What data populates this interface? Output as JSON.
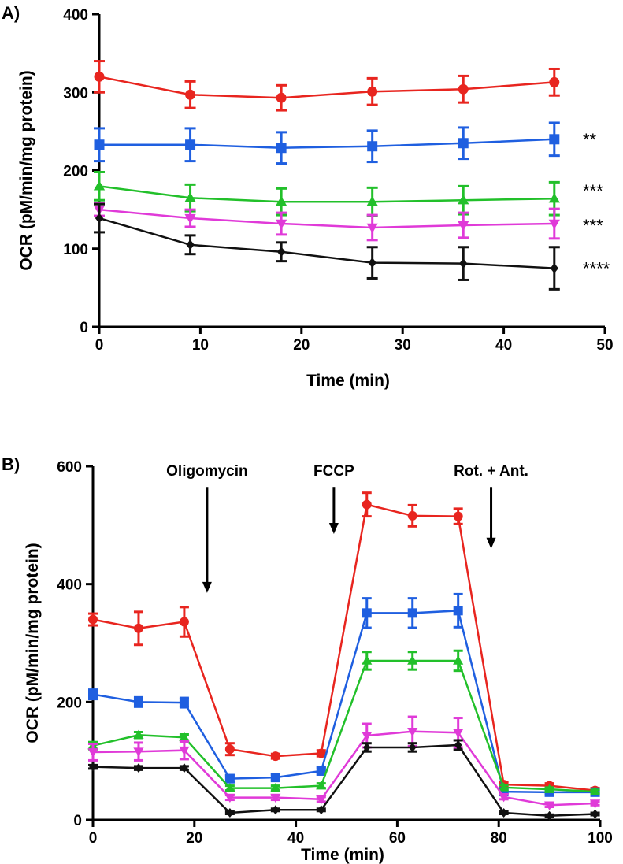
{
  "chart_data": [
    {
      "panel": "A)",
      "type": "line",
      "xlabel": "Time (min)",
      "ylabel": "OCR (pM/min/mg protein)",
      "xlim": [
        0,
        50
      ],
      "ylim": [
        0,
        400
      ],
      "xticks": [
        "0",
        "10",
        "20",
        "30",
        "40",
        "50"
      ],
      "yticks": [
        "0",
        "100",
        "200",
        "300",
        "400"
      ],
      "grid": false,
      "x": [
        0,
        9,
        18,
        27,
        36,
        45
      ],
      "series": [
        {
          "name": "red",
          "color": "#e8251f",
          "marker": "circle",
          "values": [
            320,
            297,
            293,
            301,
            304,
            313
          ],
          "errors": [
            20,
            17,
            16,
            17,
            17,
            17
          ],
          "significance": ""
        },
        {
          "name": "blue",
          "color": "#1f5fe0",
          "marker": "square",
          "values": [
            233,
            233,
            229,
            231,
            235,
            240
          ],
          "errors": [
            21,
            21,
            20,
            20,
            20,
            21
          ],
          "significance": "**"
        },
        {
          "name": "green",
          "color": "#22c02a",
          "marker": "triangle-up",
          "values": [
            180,
            165,
            160,
            160,
            162,
            164
          ],
          "errors": [
            18,
            17,
            17,
            18,
            18,
            21
          ],
          "significance": "***"
        },
        {
          "name": "magenta",
          "color": "#e03ad8",
          "marker": "triangle-down",
          "values": [
            150,
            139,
            132,
            127,
            130,
            132
          ],
          "errors": [
            8,
            11,
            14,
            16,
            16,
            19
          ],
          "significance": "***"
        },
        {
          "name": "black",
          "color": "#111111",
          "marker": "diamond",
          "values": [
            139,
            105,
            96,
            82,
            81,
            75
          ],
          "errors": [
            18,
            12,
            12,
            20,
            21,
            27
          ],
          "significance": "****"
        }
      ]
    },
    {
      "panel": "B)",
      "type": "line",
      "xlabel": "Time (min)",
      "ylabel": "OCR (pM/min/mg protein)",
      "xlim": [
        0,
        100
      ],
      "ylim": [
        0,
        600
      ],
      "xticks": [
        "0",
        "20",
        "40",
        "60",
        "80",
        "100"
      ],
      "yticks": [
        "0",
        "200",
        "400",
        "600"
      ],
      "grid": false,
      "x": [
        0,
        9,
        18,
        27,
        36,
        45,
        54,
        63,
        72,
        81,
        90,
        99
      ],
      "annotations": [
        {
          "text": "Oligomycin",
          "x": 22.5,
          "y_top": 565,
          "y_bottom": 385
        },
        {
          "text": "FCCP",
          "x": 47.5,
          "y_top": 565,
          "y_bottom": 485
        },
        {
          "text": "Rot. + Ant.",
          "x": 78.5,
          "y_top": 565,
          "y_bottom": 460
        }
      ],
      "series": [
        {
          "name": "red",
          "color": "#e8251f",
          "marker": "circle",
          "values": [
            340,
            325,
            336,
            120,
            108,
            113,
            535,
            516,
            515,
            60,
            58,
            50
          ],
          "errors": [
            10,
            28,
            25,
            10,
            4,
            5,
            20,
            18,
            13,
            4,
            4,
            4
          ]
        },
        {
          "name": "blue",
          "color": "#1f5fe0",
          "marker": "square",
          "values": [
            213,
            200,
            199,
            70,
            72,
            83,
            351,
            351,
            355,
            48,
            47,
            47
          ],
          "errors": [
            8,
            8,
            8,
            6,
            5,
            6,
            25,
            25,
            28,
            4,
            4,
            3
          ]
        },
        {
          "name": "green",
          "color": "#22c02a",
          "marker": "triangle-up",
          "values": [
            126,
            144,
            140,
            54,
            54,
            58,
            270,
            270,
            270,
            55,
            52,
            48
          ],
          "errors": [
            6,
            5,
            5,
            4,
            4,
            4,
            15,
            15,
            17,
            4,
            3,
            3
          ]
        },
        {
          "name": "magenta",
          "color": "#e03ad8",
          "marker": "triangle-down",
          "values": [
            115,
            116,
            118,
            38,
            38,
            35,
            143,
            150,
            148,
            39,
            25,
            28
          ],
          "errors": [
            14,
            15,
            15,
            4,
            4,
            4,
            20,
            25,
            25,
            4,
            3,
            3
          ]
        },
        {
          "name": "black",
          "color": "#111111",
          "marker": "diamond",
          "values": [
            90,
            88,
            88,
            12,
            17,
            17,
            123,
            123,
            127,
            12,
            7,
            10
          ],
          "errors": [
            3,
            3,
            3,
            2,
            2,
            2,
            7,
            7,
            8,
            2,
            2,
            2
          ]
        }
      ]
    }
  ]
}
